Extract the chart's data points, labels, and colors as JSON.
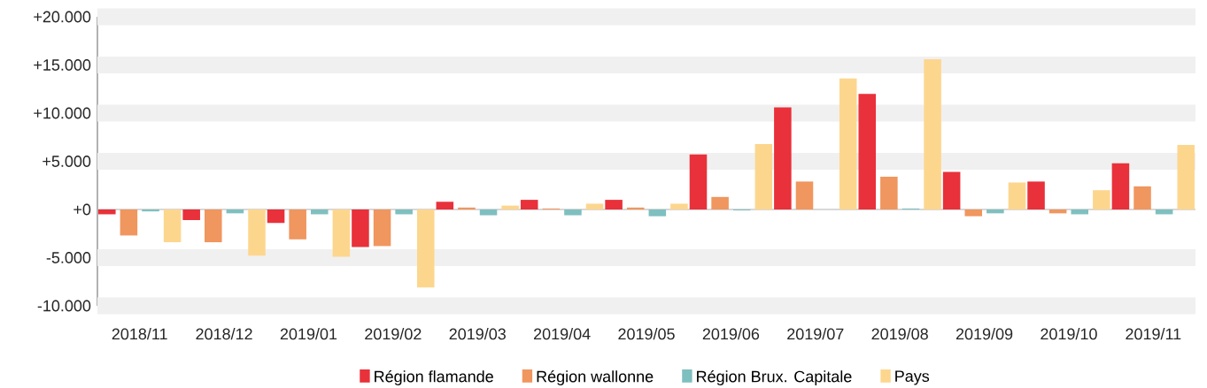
{
  "chart_data": {
    "type": "bar",
    "categories": [
      "2018/11",
      "2018/12",
      "2019/01",
      "2019/02",
      "2019/03",
      "2019/04",
      "2019/05",
      "2019/06",
      "2019/07",
      "2019/08",
      "2019/09",
      "2019/10",
      "2019/11"
    ],
    "series": [
      {
        "name": "Région flamande",
        "color": "#e8313a",
        "values": [
          -500,
          -1100,
          -1400,
          -3900,
          800,
          1000,
          1000,
          5700,
          10600,
          12000,
          3900,
          2900,
          4800
        ]
      },
      {
        "name": "Région wallonne",
        "color": "#f0965f",
        "values": [
          -2700,
          -3400,
          -3100,
          -3800,
          200,
          100,
          200,
          1300,
          2900,
          3400,
          -700,
          -400,
          2400
        ]
      },
      {
        "name": "Région Brux. Capitale",
        "color": "#7fbfbf",
        "values": [
          -200,
          -400,
          -500,
          -500,
          -600,
          -600,
          -700,
          -100,
          0,
          100,
          -400,
          -500,
          -500
        ]
      },
      {
        "name": "Pays",
        "color": "#fdd68e",
        "values": [
          -3400,
          -4800,
          -4900,
          -8100,
          400,
          600,
          600,
          6800,
          13600,
          15600,
          2800,
          2000,
          6700
        ]
      }
    ],
    "ylim": [
      -10000,
      20000
    ],
    "yticks": [
      {
        "value": -10000,
        "label": "-10.000"
      },
      {
        "value": -5000,
        "label": "-5.000"
      },
      {
        "value": 0,
        "label": "+0"
      },
      {
        "value": 5000,
        "label": "+5.000"
      },
      {
        "value": 10000,
        "label": "+10.000"
      },
      {
        "value": 15000,
        "label": "+15.000"
      },
      {
        "value": 20000,
        "label": "+20.000"
      }
    ],
    "grid": "y",
    "legend": "bottom"
  }
}
